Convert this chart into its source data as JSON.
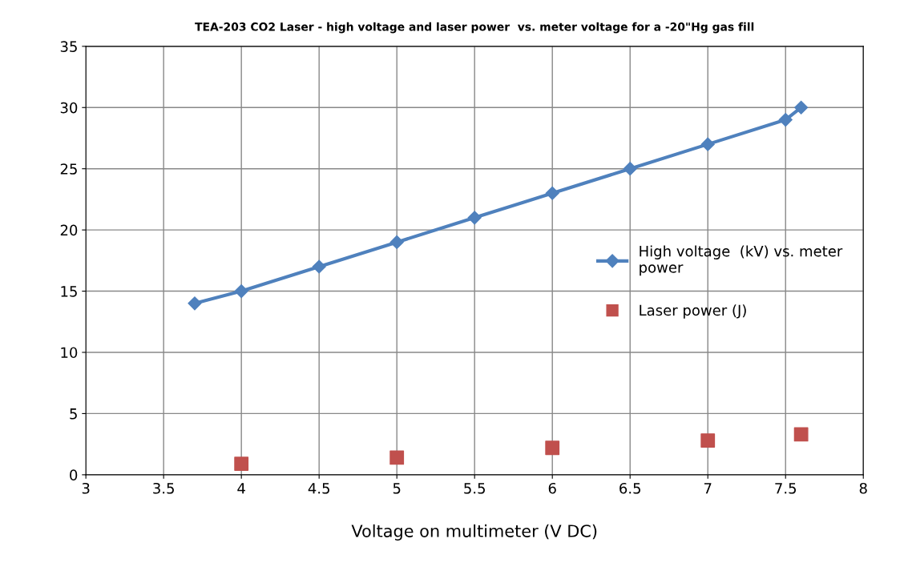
{
  "chart_data": {
    "type": "line",
    "title": "TEA-203 CO2 Laser - high voltage and laser power  vs. meter voltage for a -20\"Hg gas fill",
    "xlabel": "Voltage on multimeter (V DC)",
    "xlim": [
      3,
      8
    ],
    "xticks": [
      3,
      3.5,
      4,
      4.5,
      5,
      5.5,
      6,
      6.5,
      7,
      7.5,
      8
    ],
    "ylim": [
      0,
      35
    ],
    "yticks": [
      0,
      5,
      10,
      15,
      20,
      25,
      30,
      35
    ],
    "grid": true,
    "legend": "right",
    "series": [
      {
        "name": "High voltage  (kV) vs. meter power",
        "color": "#4f81bd",
        "marker": "diamond",
        "x": [
          3.7,
          4,
          4.5,
          5,
          5.5,
          6,
          6.5,
          7,
          7.5,
          7.6
        ],
        "values": [
          14,
          15,
          17,
          19,
          21,
          23,
          25,
          27,
          29,
          30
        ]
      },
      {
        "name": "Laser power (J)",
        "color": "#c0504d",
        "type": "scatter",
        "marker": "square",
        "x": [
          4,
          5,
          6,
          7,
          7.6
        ],
        "values": [
          0.9,
          1.4,
          2.2,
          2.8,
          3.3
        ]
      }
    ]
  }
}
